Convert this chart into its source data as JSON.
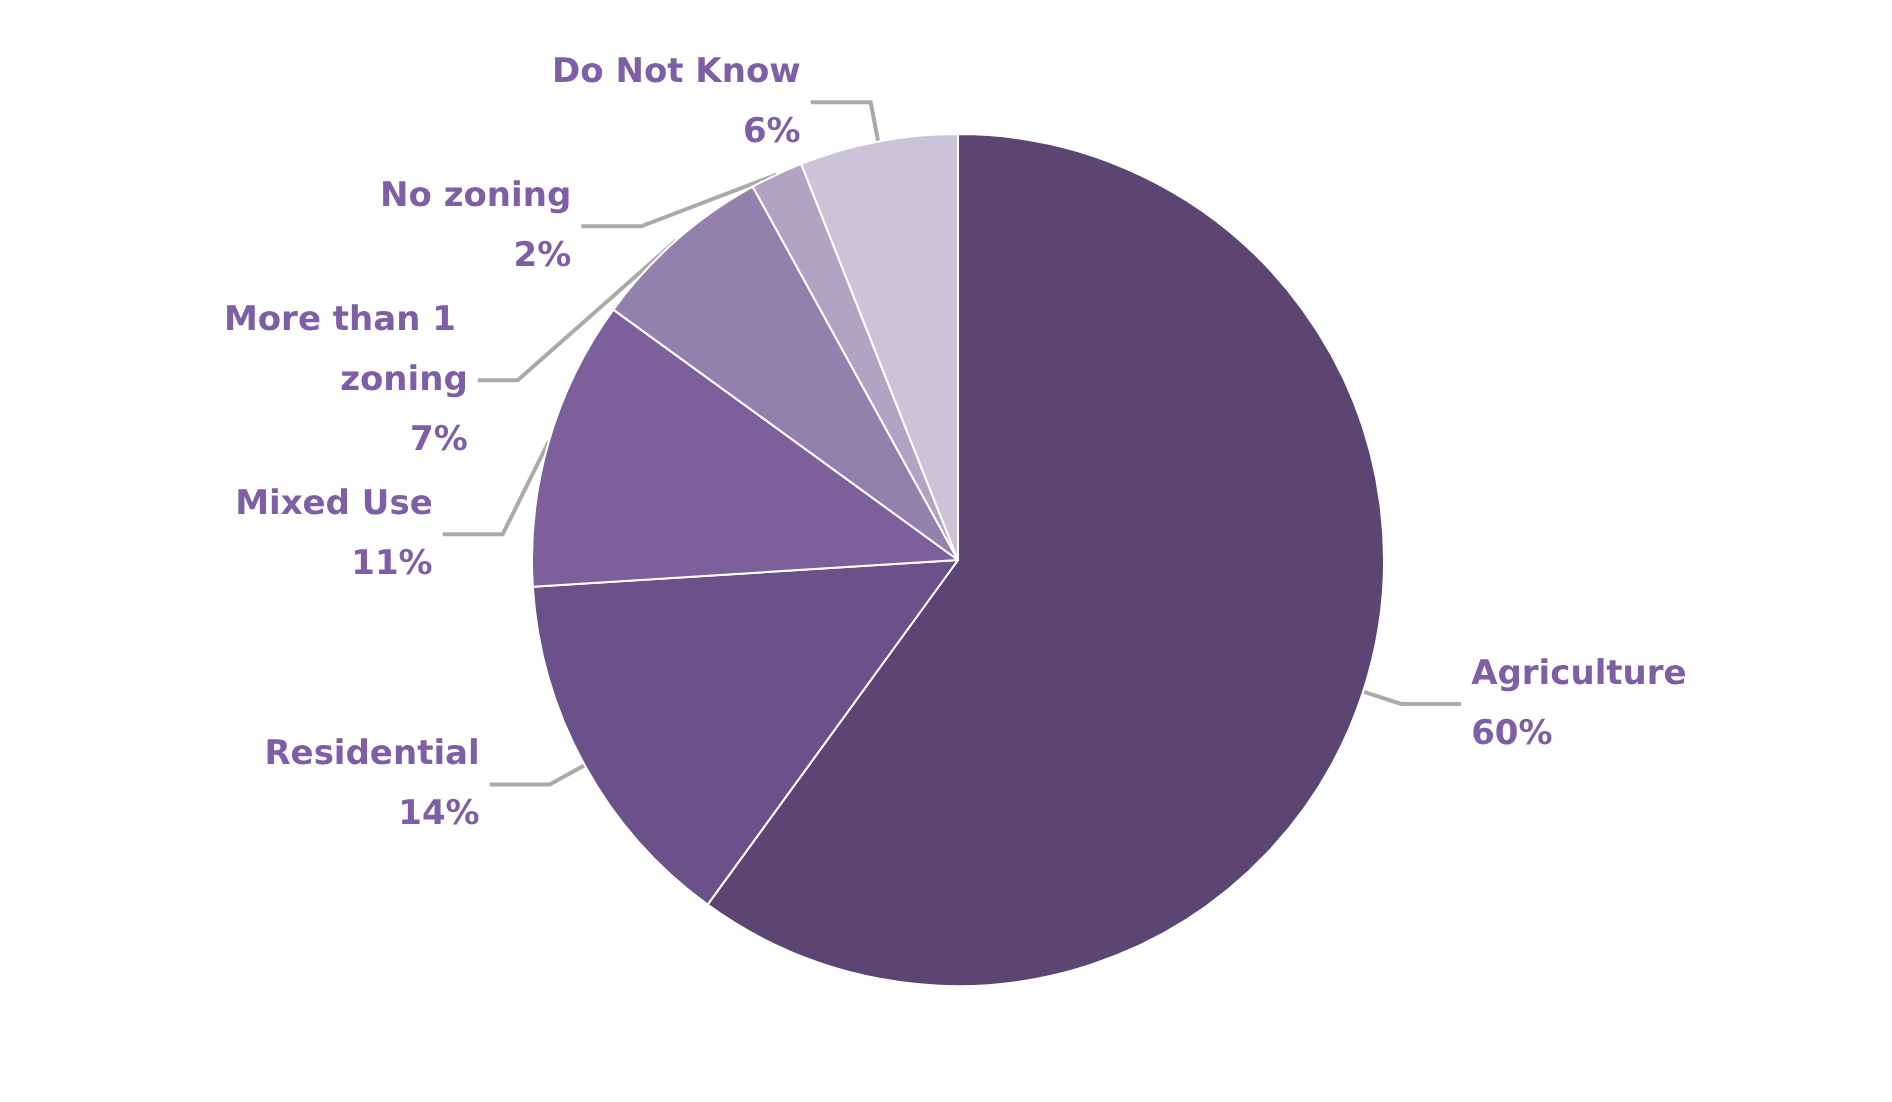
{
  "chart_data": {
    "type": "pie",
    "categories": [
      "Agriculture",
      "Residential",
      "Mixed Use",
      "More than 1 zoning",
      "No zoning",
      "Do Not Know"
    ],
    "values": [
      60,
      14,
      11,
      7,
      2,
      6
    ],
    "colors": [
      "#5c4572",
      "#6a5189",
      "#7d5f9b",
      "#9480ad",
      "#b0a3c3",
      "#cbc3d8"
    ],
    "value_labels": [
      "60%",
      "14%",
      "11%",
      "7%",
      "2%",
      "6%"
    ],
    "legend": false
  }
}
